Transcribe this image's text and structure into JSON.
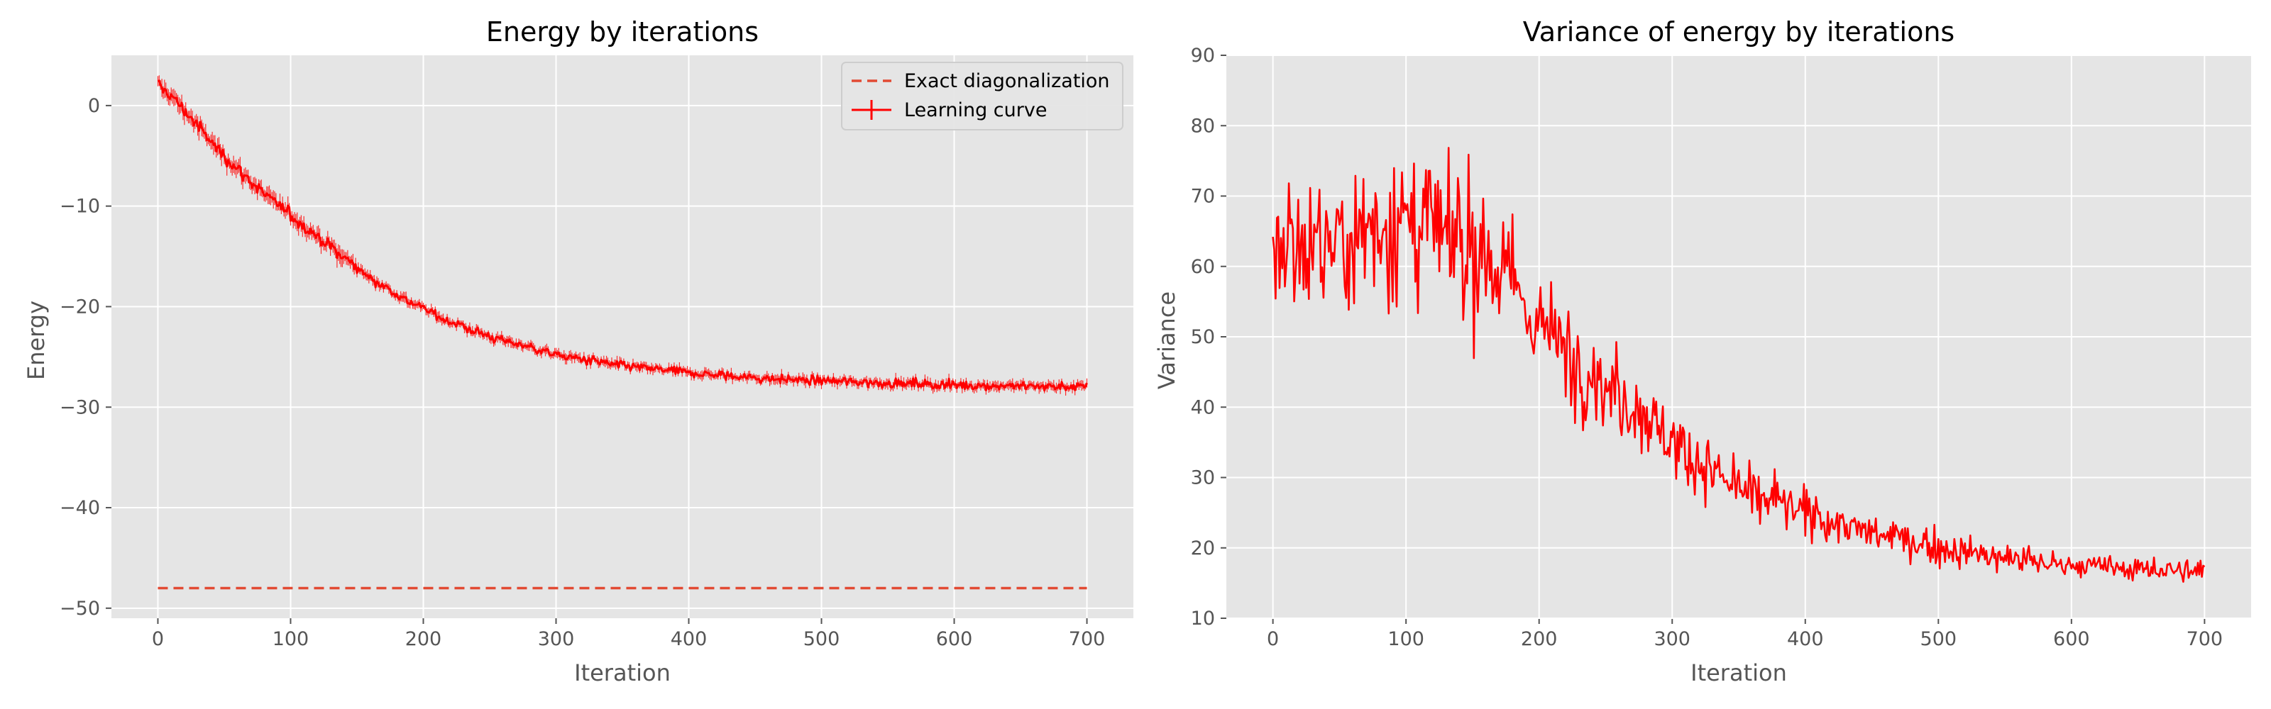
{
  "chart_data": [
    {
      "type": "line",
      "title": "Energy by iterations",
      "xlabel": "Iteration",
      "ylabel": "Energy",
      "xlim": [
        -35,
        735
      ],
      "ylim": [
        -51,
        5
      ],
      "xticks": [
        0,
        100,
        200,
        300,
        400,
        500,
        600,
        700
      ],
      "yticks": [
        0,
        -10,
        -20,
        -30,
        -40,
        -50
      ],
      "xtick_labels": [
        "0",
        "100",
        "200",
        "300",
        "400",
        "500",
        "600",
        "700"
      ],
      "ytick_labels": [
        "0",
        "−10",
        "−20",
        "−30",
        "−40",
        "−50"
      ],
      "grid": true,
      "legend": "top-right",
      "series": [
        {
          "name": "Exact diagonalization",
          "style": "dashed",
          "color": "#e24a33",
          "x": [
            0,
            700
          ],
          "y": [
            -48.0,
            -48.0
          ]
        },
        {
          "name": "Learning curve",
          "style": "solid-with-errorbars",
          "color": "#ff0000",
          "x": [
            0,
            10,
            20,
            30,
            40,
            50,
            60,
            80,
            100,
            120,
            140,
            160,
            180,
            200,
            220,
            250,
            280,
            300,
            350,
            400,
            450,
            500,
            550,
            600,
            650,
            700
          ],
          "y": [
            2.0,
            1.0,
            -0.5,
            -2.0,
            -3.6,
            -5.0,
            -6.3,
            -8.8,
            -10.9,
            -13.0,
            -15.1,
            -17.1,
            -18.8,
            -20.2,
            -21.5,
            -23.0,
            -24.0,
            -24.8,
            -25.9,
            -26.6,
            -27.1,
            -27.4,
            -27.6,
            -27.8,
            -27.9,
            -28.0
          ]
        }
      ]
    },
    {
      "type": "line",
      "title": "Variance of energy by iterations",
      "xlabel": "Iteration",
      "ylabel": "Variance",
      "xlim": [
        -35,
        735
      ],
      "ylim": [
        10,
        90
      ],
      "xticks": [
        0,
        100,
        200,
        300,
        400,
        500,
        600,
        700
      ],
      "yticks": [
        10,
        20,
        30,
        40,
        50,
        60,
        70,
        80,
        90
      ],
      "xtick_labels": [
        "0",
        "100",
        "200",
        "300",
        "400",
        "500",
        "600",
        "700"
      ],
      "ytick_labels": [
        "10",
        "20",
        "30",
        "40",
        "50",
        "60",
        "70",
        "80",
        "90"
      ],
      "grid": true,
      "series": [
        {
          "color": "#ff0000",
          "x": [
            0,
            20,
            50,
            80,
            100,
            120,
            150,
            180,
            200,
            220,
            250,
            280,
            300,
            330,
            350,
            400,
            450,
            500,
            550,
            600,
            650,
            700
          ],
          "y": [
            63,
            63,
            64,
            66,
            66,
            65,
            61,
            57,
            52,
            48,
            43,
            39,
            35,
            31,
            28,
            25,
            22,
            20,
            18.5,
            17.5,
            17,
            16.5
          ],
          "spread": [
            12,
            12,
            13,
            14,
            14,
            13,
            11,
            10,
            9,
            9,
            8,
            7,
            6,
            5,
            4.5,
            4,
            3.2,
            3,
            2.5,
            2.2,
            2,
            2
          ]
        }
      ]
    }
  ]
}
